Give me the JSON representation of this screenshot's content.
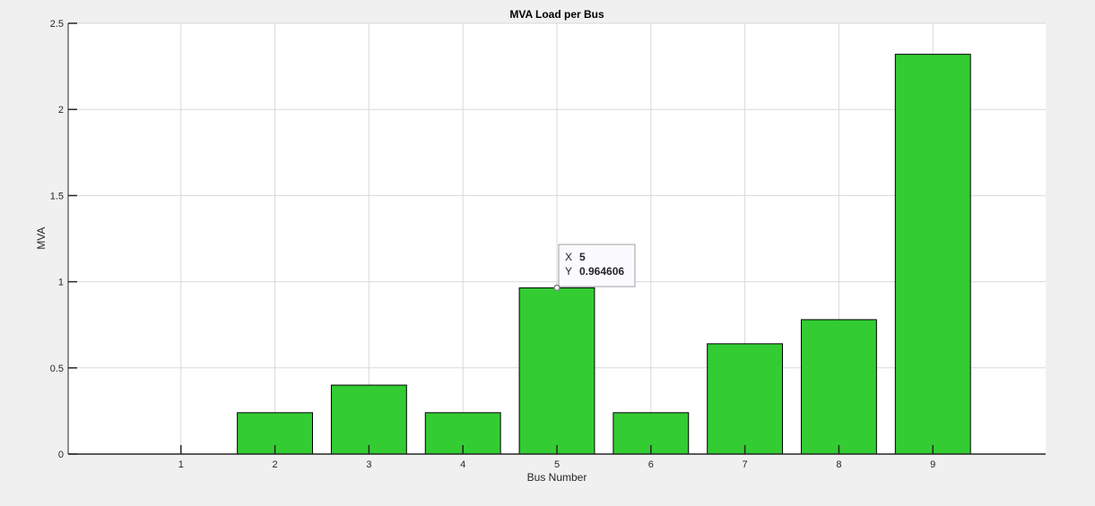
{
  "chart_data": {
    "type": "bar",
    "title": "MVA Load per Bus",
    "xlabel": "Bus Number",
    "ylabel": "MVA",
    "categories": [
      "1",
      "2",
      "3",
      "4",
      "5",
      "6",
      "7",
      "8",
      "9"
    ],
    "x": [
      1,
      2,
      3,
      4,
      5,
      6,
      7,
      8,
      9
    ],
    "values": [
      0,
      0.24,
      0.4,
      0.24,
      0.964606,
      0.24,
      0.64,
      0.78,
      2.32
    ],
    "xlim": [
      -0.2,
      10.2
    ],
    "ylim": [
      0,
      2.5
    ],
    "yticks": [
      0,
      0.5,
      1,
      1.5,
      2,
      2.5
    ],
    "ytick_labels": [
      "0",
      "0.5",
      "1",
      "1.5",
      "2",
      "2.5"
    ],
    "grid": true,
    "bar_color": "#33cc33",
    "bar_edge_color": "#000000",
    "datatip": {
      "bus": 5,
      "x_label": "X",
      "x_value": "5",
      "y_label": "Y",
      "y_value": "0.964606"
    }
  }
}
